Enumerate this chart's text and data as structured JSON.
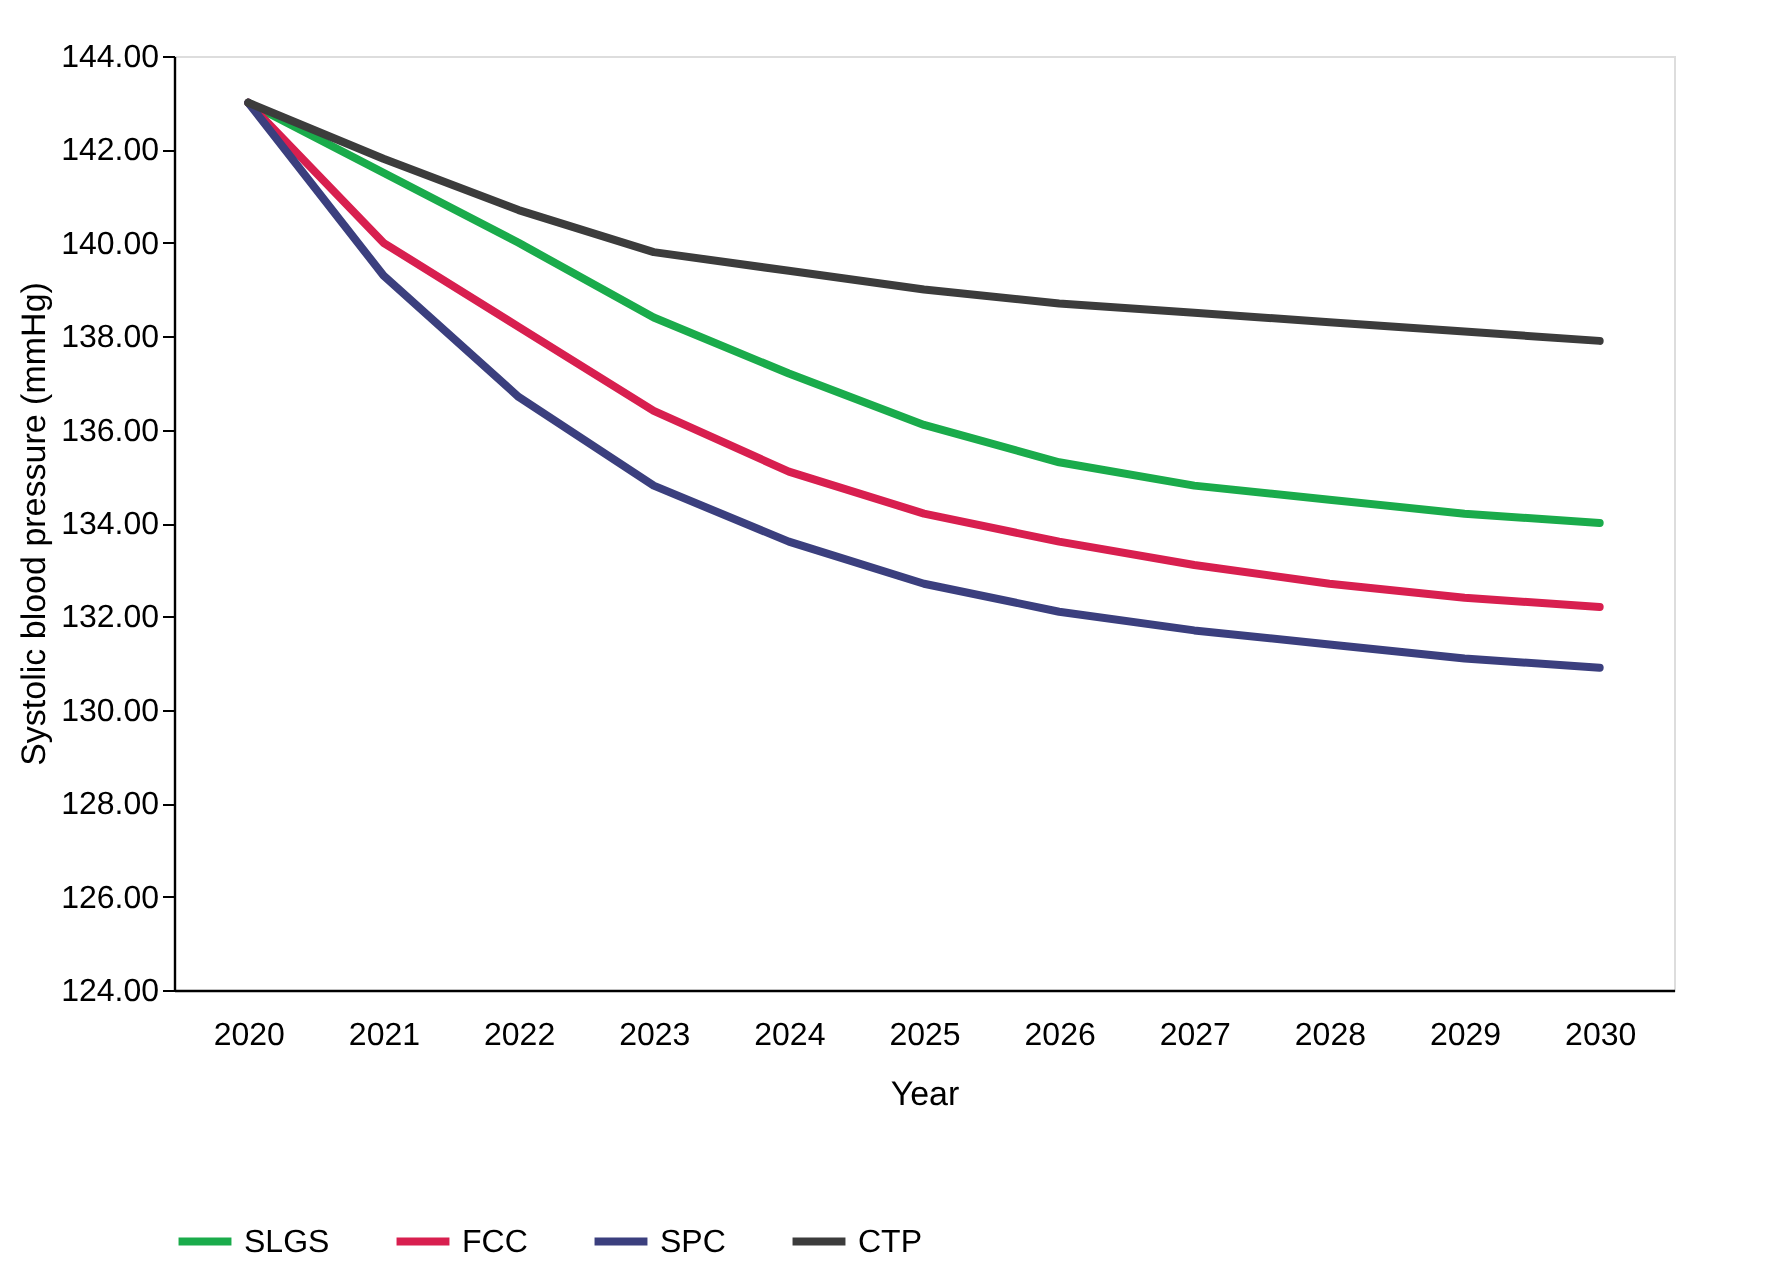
{
  "chart_data": {
    "type": "line",
    "xlabel": "Year",
    "ylabel": "Systolic blood pressure (mmHg)",
    "categories": [
      "2020",
      "2021",
      "2022",
      "2023",
      "2024",
      "2025",
      "2026",
      "2027",
      "2028",
      "2029",
      "2030"
    ],
    "series": [
      {
        "name": "SLGS",
        "color": "#1aab4b",
        "values": [
          143.0,
          141.5,
          140.0,
          138.4,
          137.2,
          136.1,
          135.3,
          134.8,
          134.5,
          134.2,
          134.0
        ]
      },
      {
        "name": "FCC",
        "color": "#d81f4f",
        "values": [
          143.0,
          140.0,
          138.2,
          136.4,
          135.1,
          134.2,
          133.6,
          133.1,
          132.7,
          132.4,
          132.2
        ]
      },
      {
        "name": "SPC",
        "color": "#3b3f7e",
        "values": [
          143.0,
          139.3,
          136.7,
          134.8,
          133.6,
          132.7,
          132.1,
          131.7,
          131.4,
          131.1,
          130.9
        ]
      },
      {
        "name": "CTP",
        "color": "#3c3c3c",
        "values": [
          143.0,
          141.8,
          140.7,
          139.8,
          139.4,
          139.0,
          138.7,
          138.5,
          138.3,
          138.1,
          137.9
        ]
      }
    ],
    "ylim": [
      124,
      144
    ],
    "yticks": [
      {
        "value": 124,
        "label": "124.00"
      },
      {
        "value": 126,
        "label": "126.00"
      },
      {
        "value": 128,
        "label": "128.00"
      },
      {
        "value": 130,
        "label": "130.00"
      },
      {
        "value": 132,
        "label": "132.00"
      },
      {
        "value": 134,
        "label": "134.00"
      },
      {
        "value": 136,
        "label": "136.00"
      },
      {
        "value": 138,
        "label": "138.00"
      },
      {
        "value": 140,
        "label": "140.00"
      },
      {
        "value": 142,
        "label": "142.00"
      },
      {
        "value": 144,
        "label": "144.00"
      }
    ],
    "grid": false,
    "legend": "bottom",
    "marker": "none",
    "line_style": "solid"
  }
}
